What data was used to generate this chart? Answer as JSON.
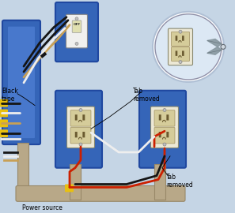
{
  "background_color": "#c5d5e5",
  "labels": {
    "black_tape": "Black\ntape",
    "power_source": "Power source",
    "tab_removed_top": "Tab\nremoved",
    "tab_removed_bottom": "Tab\nremoved"
  },
  "colors": {
    "box_blue": "#3565b8",
    "box_blue_inner": "#4878cc",
    "panel_bg": "#c5d5e5",
    "wire_black": "#151515",
    "wire_white": "#eeeeee",
    "wire_red": "#cc2000",
    "wire_tan": "#c8a055",
    "wire_yellow_tip": "#e8c010",
    "conduit_gray": "#a8b8c5",
    "conduit_edge": "#8898a8",
    "outlet_body": "#ece8d5",
    "outlet_slot": "#d5cc9a",
    "outlet_hole": "#6a5a30",
    "screw": "#c0c0c0",
    "switch_body": "#f0f0ee",
    "switch_lever": "#e0e0b0",
    "circle_fill": "#dce8f4",
    "plier_gray": "#8898a0"
  }
}
